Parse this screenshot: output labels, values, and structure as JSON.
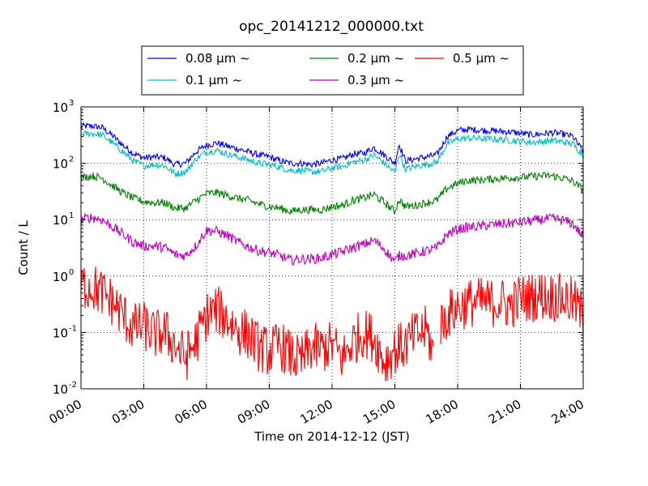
{
  "chart_data": {
    "type": "line",
    "title": "opc_20141212_000000.txt",
    "xlabel": "Time on 2014-12-12 (JST)",
    "ylabel": "Count / L",
    "x_unit": "hours",
    "xlim": [
      0,
      24
    ],
    "ylim": [
      0.01,
      1000
    ],
    "yscale": "log",
    "grid": true,
    "legend_position": "top-center",
    "x_ticks": [
      {
        "value": 0,
        "label": "00:00"
      },
      {
        "value": 3,
        "label": "03:00"
      },
      {
        "value": 6,
        "label": "06:00"
      },
      {
        "value": 9,
        "label": "09:00"
      },
      {
        "value": 12,
        "label": "12:00"
      },
      {
        "value": 15,
        "label": "15:00"
      },
      {
        "value": 18,
        "label": "18:00"
      },
      {
        "value": 21,
        "label": "21:00"
      },
      {
        "value": 24,
        "label": "24:00"
      }
    ],
    "y_ticks": [
      {
        "value": 0.01,
        "base": "10",
        "exp": "-2"
      },
      {
        "value": 0.1,
        "base": "10",
        "exp": "-1"
      },
      {
        "value": 1,
        "base": "10",
        "exp": "0"
      },
      {
        "value": 10,
        "base": "10",
        "exp": "1"
      },
      {
        "value": 100,
        "base": "10",
        "exp": "2"
      },
      {
        "value": 1000,
        "base": "10",
        "exp": "3"
      }
    ],
    "series": [
      {
        "name": "0.08 µm ~",
        "legend_text": "0.08 ",
        "color": "#0000ff",
        "x": [
          0,
          0.5,
          1,
          1.5,
          2,
          2.5,
          3,
          3.5,
          4,
          4.5,
          5,
          5.5,
          6,
          6.5,
          7,
          7.5,
          8,
          8.5,
          9,
          9.5,
          10,
          10.5,
          11,
          11.5,
          12,
          12.5,
          13,
          13.5,
          14,
          14.5,
          15,
          15.2,
          15.5,
          16,
          16.5,
          17,
          17.5,
          18,
          18.5,
          19,
          19.5,
          20,
          20.5,
          21,
          21.5,
          22,
          22.5,
          23,
          23.5,
          24
        ],
        "y": [
          450,
          460,
          430,
          310,
          210,
          150,
          125,
          130,
          125,
          95,
          100,
          160,
          210,
          230,
          200,
          180,
          160,
          140,
          130,
          110,
          100,
          100,
          95,
          100,
          115,
          120,
          145,
          150,
          190,
          140,
          100,
          220,
          110,
          120,
          130,
          140,
          300,
          380,
          400,
          390,
          380,
          370,
          360,
          340,
          320,
          330,
          350,
          330,
          300,
          160
        ]
      },
      {
        "name": "0.1 µm ~",
        "legend_text": "0.1 ",
        "color": "#00bfbf",
        "x": [
          0,
          0.5,
          1,
          1.5,
          2,
          2.5,
          3,
          3.5,
          4,
          4.5,
          5,
          5.5,
          6,
          6.5,
          7,
          7.5,
          8,
          8.5,
          9,
          9.5,
          10,
          10.5,
          11,
          11.5,
          12,
          12.5,
          13,
          13.5,
          14,
          14.5,
          15,
          15.2,
          15.5,
          16,
          16.5,
          17,
          17.5,
          18,
          18.5,
          19,
          19.5,
          20,
          20.5,
          21,
          21.5,
          22,
          22.5,
          23,
          23.5,
          24
        ],
        "y": [
          330,
          340,
          320,
          230,
          160,
          110,
          90,
          95,
          90,
          65,
          70,
          120,
          160,
          170,
          145,
          130,
          115,
          100,
          95,
          85,
          75,
          75,
          70,
          72,
          82,
          88,
          105,
          112,
          140,
          100,
          68,
          150,
          78,
          88,
          95,
          105,
          220,
          270,
          280,
          275,
          270,
          265,
          255,
          245,
          235,
          240,
          255,
          240,
          220,
          140
        ]
      },
      {
        "name": "0.2 µm ~",
        "legend_text": "0.2 ",
        "color": "#008000",
        "x": [
          0,
          0.5,
          1,
          1.5,
          2,
          2.5,
          3,
          3.5,
          4,
          4.5,
          5,
          5.5,
          6,
          6.5,
          7,
          7.5,
          8,
          8.5,
          9,
          9.5,
          10,
          10.5,
          11,
          11.5,
          12,
          12.5,
          13,
          13.5,
          14,
          14.5,
          15,
          15.2,
          15.5,
          16,
          16.5,
          17,
          17.5,
          18,
          18.5,
          19,
          19.5,
          20,
          20.5,
          21,
          21.5,
          22,
          22.5,
          23,
          23.5,
          24
        ],
        "y": [
          55,
          60,
          55,
          40,
          30,
          24,
          21,
          20,
          20,
          16,
          16,
          22,
          29,
          30,
          27,
          24,
          22,
          19,
          17,
          16,
          14,
          15,
          15,
          15,
          17,
          18,
          22,
          24,
          28,
          20,
          14,
          23,
          17,
          18,
          20,
          22,
          36,
          44,
          50,
          50,
          52,
          54,
          55,
          57,
          58,
          60,
          60,
          55,
          48,
          34
        ]
      },
      {
        "name": "0.3 µm ~",
        "legend_text": "0.3 ",
        "color": "#bf00bf",
        "x": [
          0,
          0.5,
          1,
          1.5,
          2,
          2.5,
          3,
          3.5,
          4,
          4.5,
          5,
          5.5,
          6,
          6.5,
          7,
          7.5,
          8,
          8.5,
          9,
          9.5,
          10,
          10.5,
          11,
          11.5,
          12,
          12.5,
          13,
          13.5,
          14,
          14.5,
          15,
          15.2,
          15.5,
          16,
          16.5,
          17,
          17.5,
          18,
          18.5,
          19,
          19.5,
          20,
          20.5,
          21,
          21.5,
          22,
          22.5,
          23,
          23.5,
          24
        ],
        "y": [
          10,
          11,
          10,
          7.5,
          5.5,
          4,
          3.4,
          3.4,
          3.2,
          2.4,
          2.3,
          3.5,
          6.5,
          6.2,
          5.2,
          4,
          3.3,
          2.8,
          2.6,
          2.3,
          1.9,
          2,
          2,
          2.1,
          2.4,
          2.7,
          3.2,
          3.6,
          4.3,
          3,
          1.8,
          2.3,
          2.3,
          2.5,
          2.8,
          3.1,
          5.5,
          6.8,
          7.3,
          7.6,
          8,
          8.3,
          8.6,
          9,
          9.4,
          10,
          10.5,
          9.8,
          8.5,
          5
        ]
      },
      {
        "name": "0.5 µm ~",
        "legend_text": "0.5 ",
        "color": "#ff0000",
        "x": [
          0,
          0.5,
          1,
          1.5,
          2,
          2.5,
          3,
          3.5,
          4,
          4.5,
          5,
          5.5,
          6,
          6.5,
          7,
          7.5,
          8,
          8.5,
          9,
          9.5,
          10,
          10.5,
          11,
          11.5,
          12,
          12.5,
          13,
          13.5,
          14,
          14.5,
          15,
          15.5,
          16,
          16.5,
          16.8,
          17.2,
          17.5,
          18,
          18.5,
          19,
          19.5,
          20,
          20.5,
          21,
          21.5,
          22,
          22.5,
          23,
          23.5,
          24
        ],
        "y": [
          0.7,
          0.65,
          0.5,
          0.35,
          0.2,
          0.12,
          0.13,
          0.09,
          0.1,
          0.06,
          0.035,
          0.07,
          0.2,
          0.25,
          0.17,
          0.11,
          0.09,
          0.055,
          0.045,
          0.06,
          0.04,
          0.03,
          0.055,
          0.05,
          0.06,
          0.035,
          0.07,
          0.1,
          0.08,
          0.03,
          0.05,
          0.06,
          0.09,
          0.11,
          0.05,
          0.13,
          0.2,
          0.28,
          0.33,
          0.35,
          0.33,
          0.35,
          0.3,
          0.4,
          0.42,
          0.45,
          0.43,
          0.4,
          0.35,
          0.2
        ]
      }
    ]
  }
}
